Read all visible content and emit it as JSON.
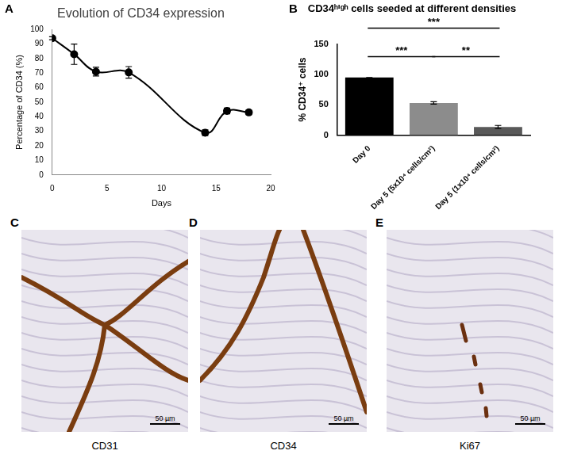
{
  "chart_data": [
    {
      "panel_label": "A",
      "type": "line",
      "title": "Evolution of CD34 expression",
      "x_label": "Days",
      "y_label": "Percentage of CD34 (%)",
      "x": [
        0,
        2,
        4,
        7,
        14,
        16,
        18
      ],
      "values": [
        94,
        83,
        71,
        70.5,
        29,
        44,
        43
      ],
      "errors": [
        1,
        7,
        3,
        4,
        2,
        2,
        1.5
      ],
      "color": "#000000",
      "marker": "circle",
      "line_style": "solid",
      "xlim": [
        0,
        20
      ],
      "xticks": [
        0,
        5,
        10,
        15,
        20
      ],
      "ylim": [
        0,
        100
      ],
      "yticks": [
        0,
        10,
        20,
        30,
        40,
        50,
        60,
        70,
        80,
        90,
        100
      ],
      "grid": false
    },
    {
      "panel_label": "B",
      "type": "bar",
      "title": "CD34ʰⁱᵍʰ cells seeded at different densities",
      "y_label": "% CD34⁺ cells",
      "categories": [
        "Day 0",
        "Day 5 (5x10⁴ cells/cm²)",
        "Day 5 (1x10⁴ cells/cm²)"
      ],
      "values": [
        95,
        53,
        13.5
      ],
      "errors": [
        0,
        2,
        2.5
      ],
      "colors": [
        "#000000",
        "#8c8c8c",
        "#595959"
      ],
      "ylim": [
        0,
        150
      ],
      "yticks": [
        0,
        50,
        100,
        150
      ],
      "grid": false,
      "significance": [
        {
          "from": 0,
          "to": 2,
          "label": "***"
        },
        {
          "from": 0,
          "to": 1,
          "label": "***"
        },
        {
          "from": 1,
          "to": 2,
          "label": "**"
        }
      ]
    }
  ],
  "images": [
    {
      "panel_label": "C",
      "caption": "CD31",
      "scale_bar": "50 µm"
    },
    {
      "panel_label": "D",
      "caption": "CD34",
      "scale_bar": "50 µm"
    },
    {
      "panel_label": "E",
      "caption": "Ki67",
      "scale_bar": "50 µm"
    }
  ]
}
